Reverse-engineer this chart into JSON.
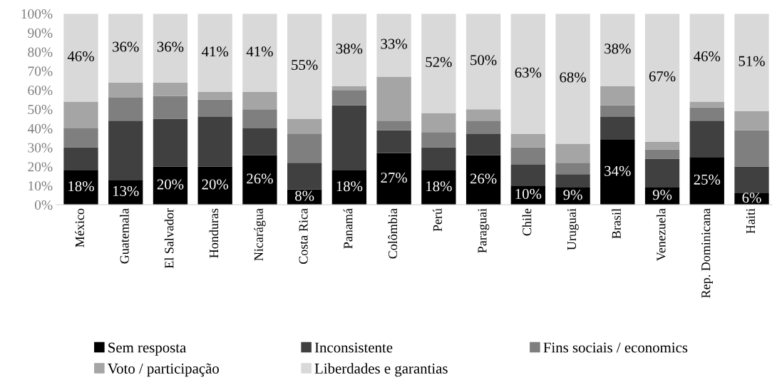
{
  "chart_data": {
    "type": "bar",
    "stacked": true,
    "categories": [
      "México",
      "Guatemala",
      "El Salvador",
      "Honduras",
      "Nicarágua",
      "Costa Rica",
      "Panamá",
      "Colômbia",
      "Perú",
      "Paraguai",
      "Chile",
      "Uruguai",
      "Brasil",
      "Venezuela",
      "Rep. Dominicana",
      "Haiti"
    ],
    "ylim": [
      0,
      100
    ],
    "yticks": [
      {
        "value": 0,
        "label": "0%"
      },
      {
        "value": 10,
        "label": "10%"
      },
      {
        "value": 20,
        "label": "20%"
      },
      {
        "value": 30,
        "label": "30%"
      },
      {
        "value": 40,
        "label": "40%"
      },
      {
        "value": 50,
        "label": "50%"
      },
      {
        "value": 60,
        "label": "60%"
      },
      {
        "value": 70,
        "label": "70%"
      },
      {
        "value": 80,
        "label": "80%"
      },
      {
        "value": 90,
        "label": "90%"
      },
      {
        "value": 100,
        "label": "100%"
      }
    ],
    "grid": false,
    "legend": "bottom",
    "series": [
      {
        "name": "Sem resposta",
        "color": "#000000",
        "values": [
          18,
          13,
          20,
          20,
          26,
          8,
          18,
          27,
          18,
          26,
          10,
          9,
          34,
          9,
          25,
          6
        ],
        "value_labels": [
          "18%",
          "13%",
          "20%",
          "20%",
          "26%",
          "8%",
          "18%",
          "27%",
          "18%",
          "26%",
          "10%",
          "9%",
          "34%",
          "9%",
          "25%",
          "6%"
        ]
      },
      {
        "name": "Inconsistente",
        "color": "#404040",
        "values": [
          12,
          31,
          25,
          26,
          14,
          14,
          34,
          12,
          12,
          11,
          11,
          7,
          12,
          15,
          19,
          14
        ]
      },
      {
        "name": "Fins sociais / economics",
        "color": "#7f7f7f",
        "values": [
          10,
          12,
          12,
          9,
          10,
          15,
          8,
          5,
          8,
          7,
          9,
          6,
          6,
          5,
          7,
          19
        ]
      },
      {
        "name": "Voto / participação",
        "color": "#a5a5a5",
        "values": [
          14,
          8,
          7,
          4,
          9,
          8,
          2,
          23,
          10,
          6,
          7,
          10,
          10,
          4,
          3,
          10
        ]
      },
      {
        "name": "Liberdades e garantias",
        "color": "#d9d9d9",
        "values": [
          46,
          36,
          36,
          41,
          41,
          55,
          38,
          33,
          52,
          50,
          63,
          68,
          38,
          67,
          46,
          51
        ],
        "value_labels": [
          "46%",
          "36%",
          "36%",
          "41%",
          "41%",
          "55%",
          "38%",
          "33%",
          "52%",
          "50%",
          "63%",
          "68%",
          "38%",
          "67%",
          "46%",
          "51%"
        ]
      }
    ]
  }
}
